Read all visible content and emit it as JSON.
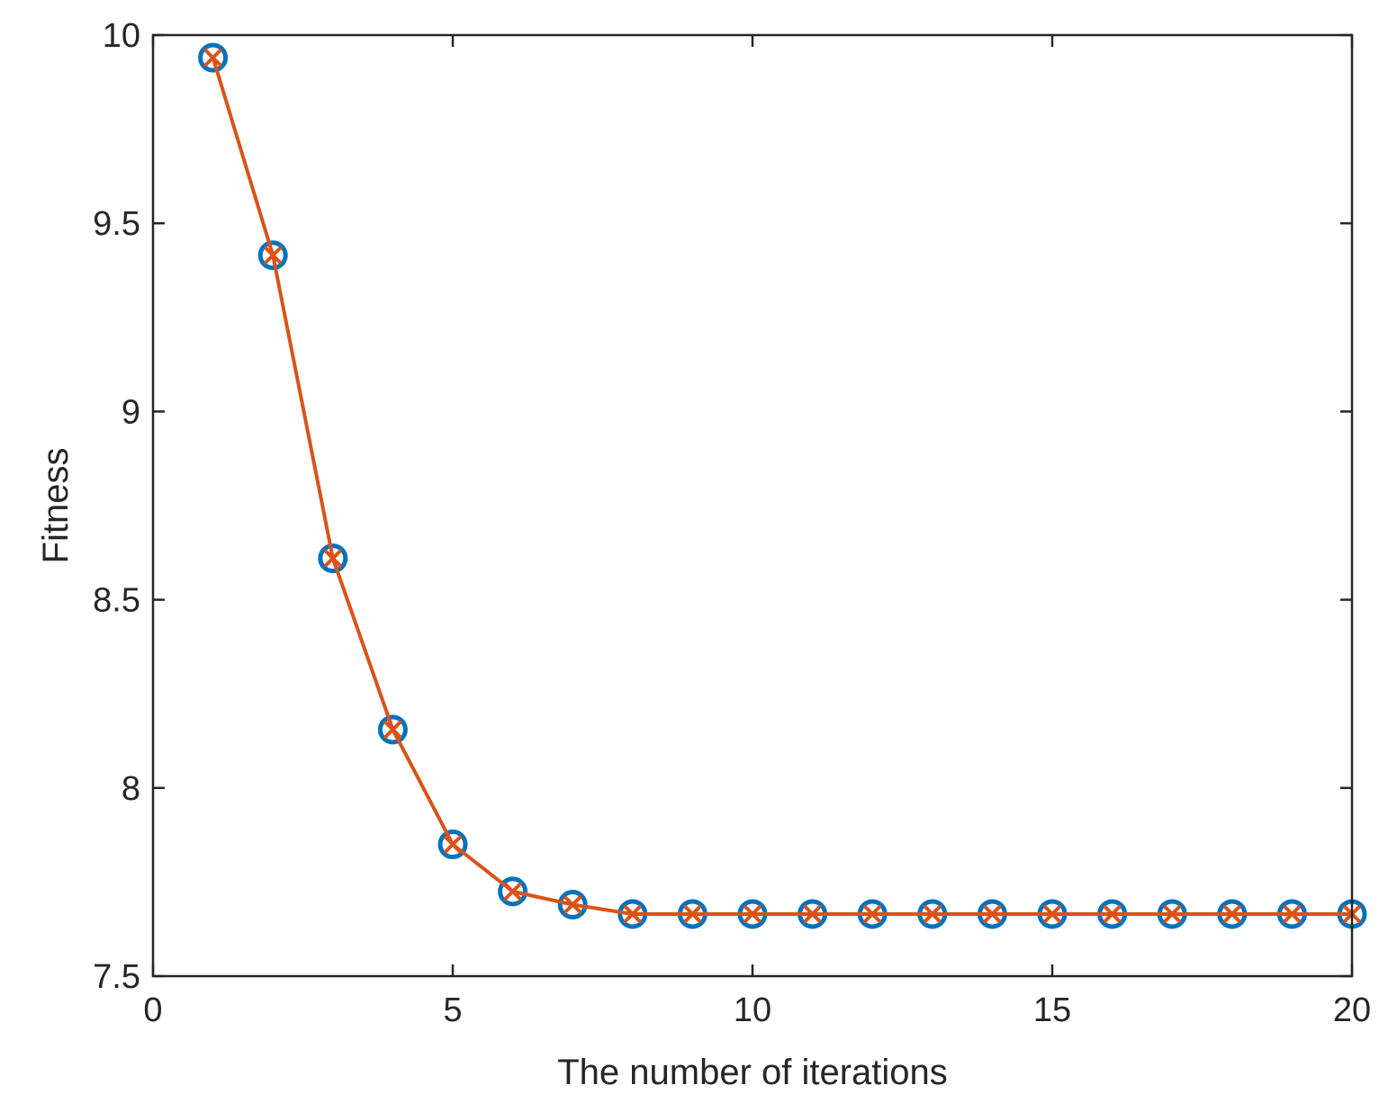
{
  "chart_data": {
    "type": "line",
    "xlabel": "The number of iterations",
    "ylabel": "Fitness",
    "xlim": [
      0,
      20
    ],
    "ylim": [
      7.5,
      10
    ],
    "xticks": [
      0,
      5,
      10,
      15,
      20
    ],
    "yticks": [
      7.5,
      8,
      8.5,
      9,
      9.5,
      10
    ],
    "xtick_labels": [
      "0",
      "5",
      "10",
      "15",
      "20"
    ],
    "ytick_labels": [
      "7.5",
      "8",
      "8.5",
      "9",
      "9.5",
      "10"
    ],
    "grid": false,
    "legend": "none",
    "series": [
      {
        "marker": "circle",
        "line": false,
        "color": "#0072BD",
        "x": [
          1,
          2,
          3,
          4,
          5,
          6,
          7,
          8,
          9,
          10,
          11,
          12,
          13,
          14,
          15,
          16,
          17,
          18,
          19,
          20
        ],
        "values": [
          9.94,
          9.415,
          8.61,
          8.155,
          7.85,
          7.725,
          7.69,
          7.665,
          7.665,
          7.665,
          7.665,
          7.665,
          7.665,
          7.665,
          7.665,
          7.665,
          7.665,
          7.665,
          7.665,
          7.665
        ]
      },
      {
        "marker": "x",
        "line": true,
        "color": "#D95319",
        "x": [
          1,
          2,
          3,
          4,
          5,
          6,
          7,
          8,
          9,
          10,
          11,
          12,
          13,
          14,
          15,
          16,
          17,
          18,
          19,
          20
        ],
        "values": [
          9.94,
          9.415,
          8.61,
          8.155,
          7.85,
          7.725,
          7.69,
          7.665,
          7.665,
          7.665,
          7.665,
          7.665,
          7.665,
          7.665,
          7.665,
          7.665,
          7.665,
          7.665,
          7.665,
          7.665
        ]
      }
    ]
  }
}
